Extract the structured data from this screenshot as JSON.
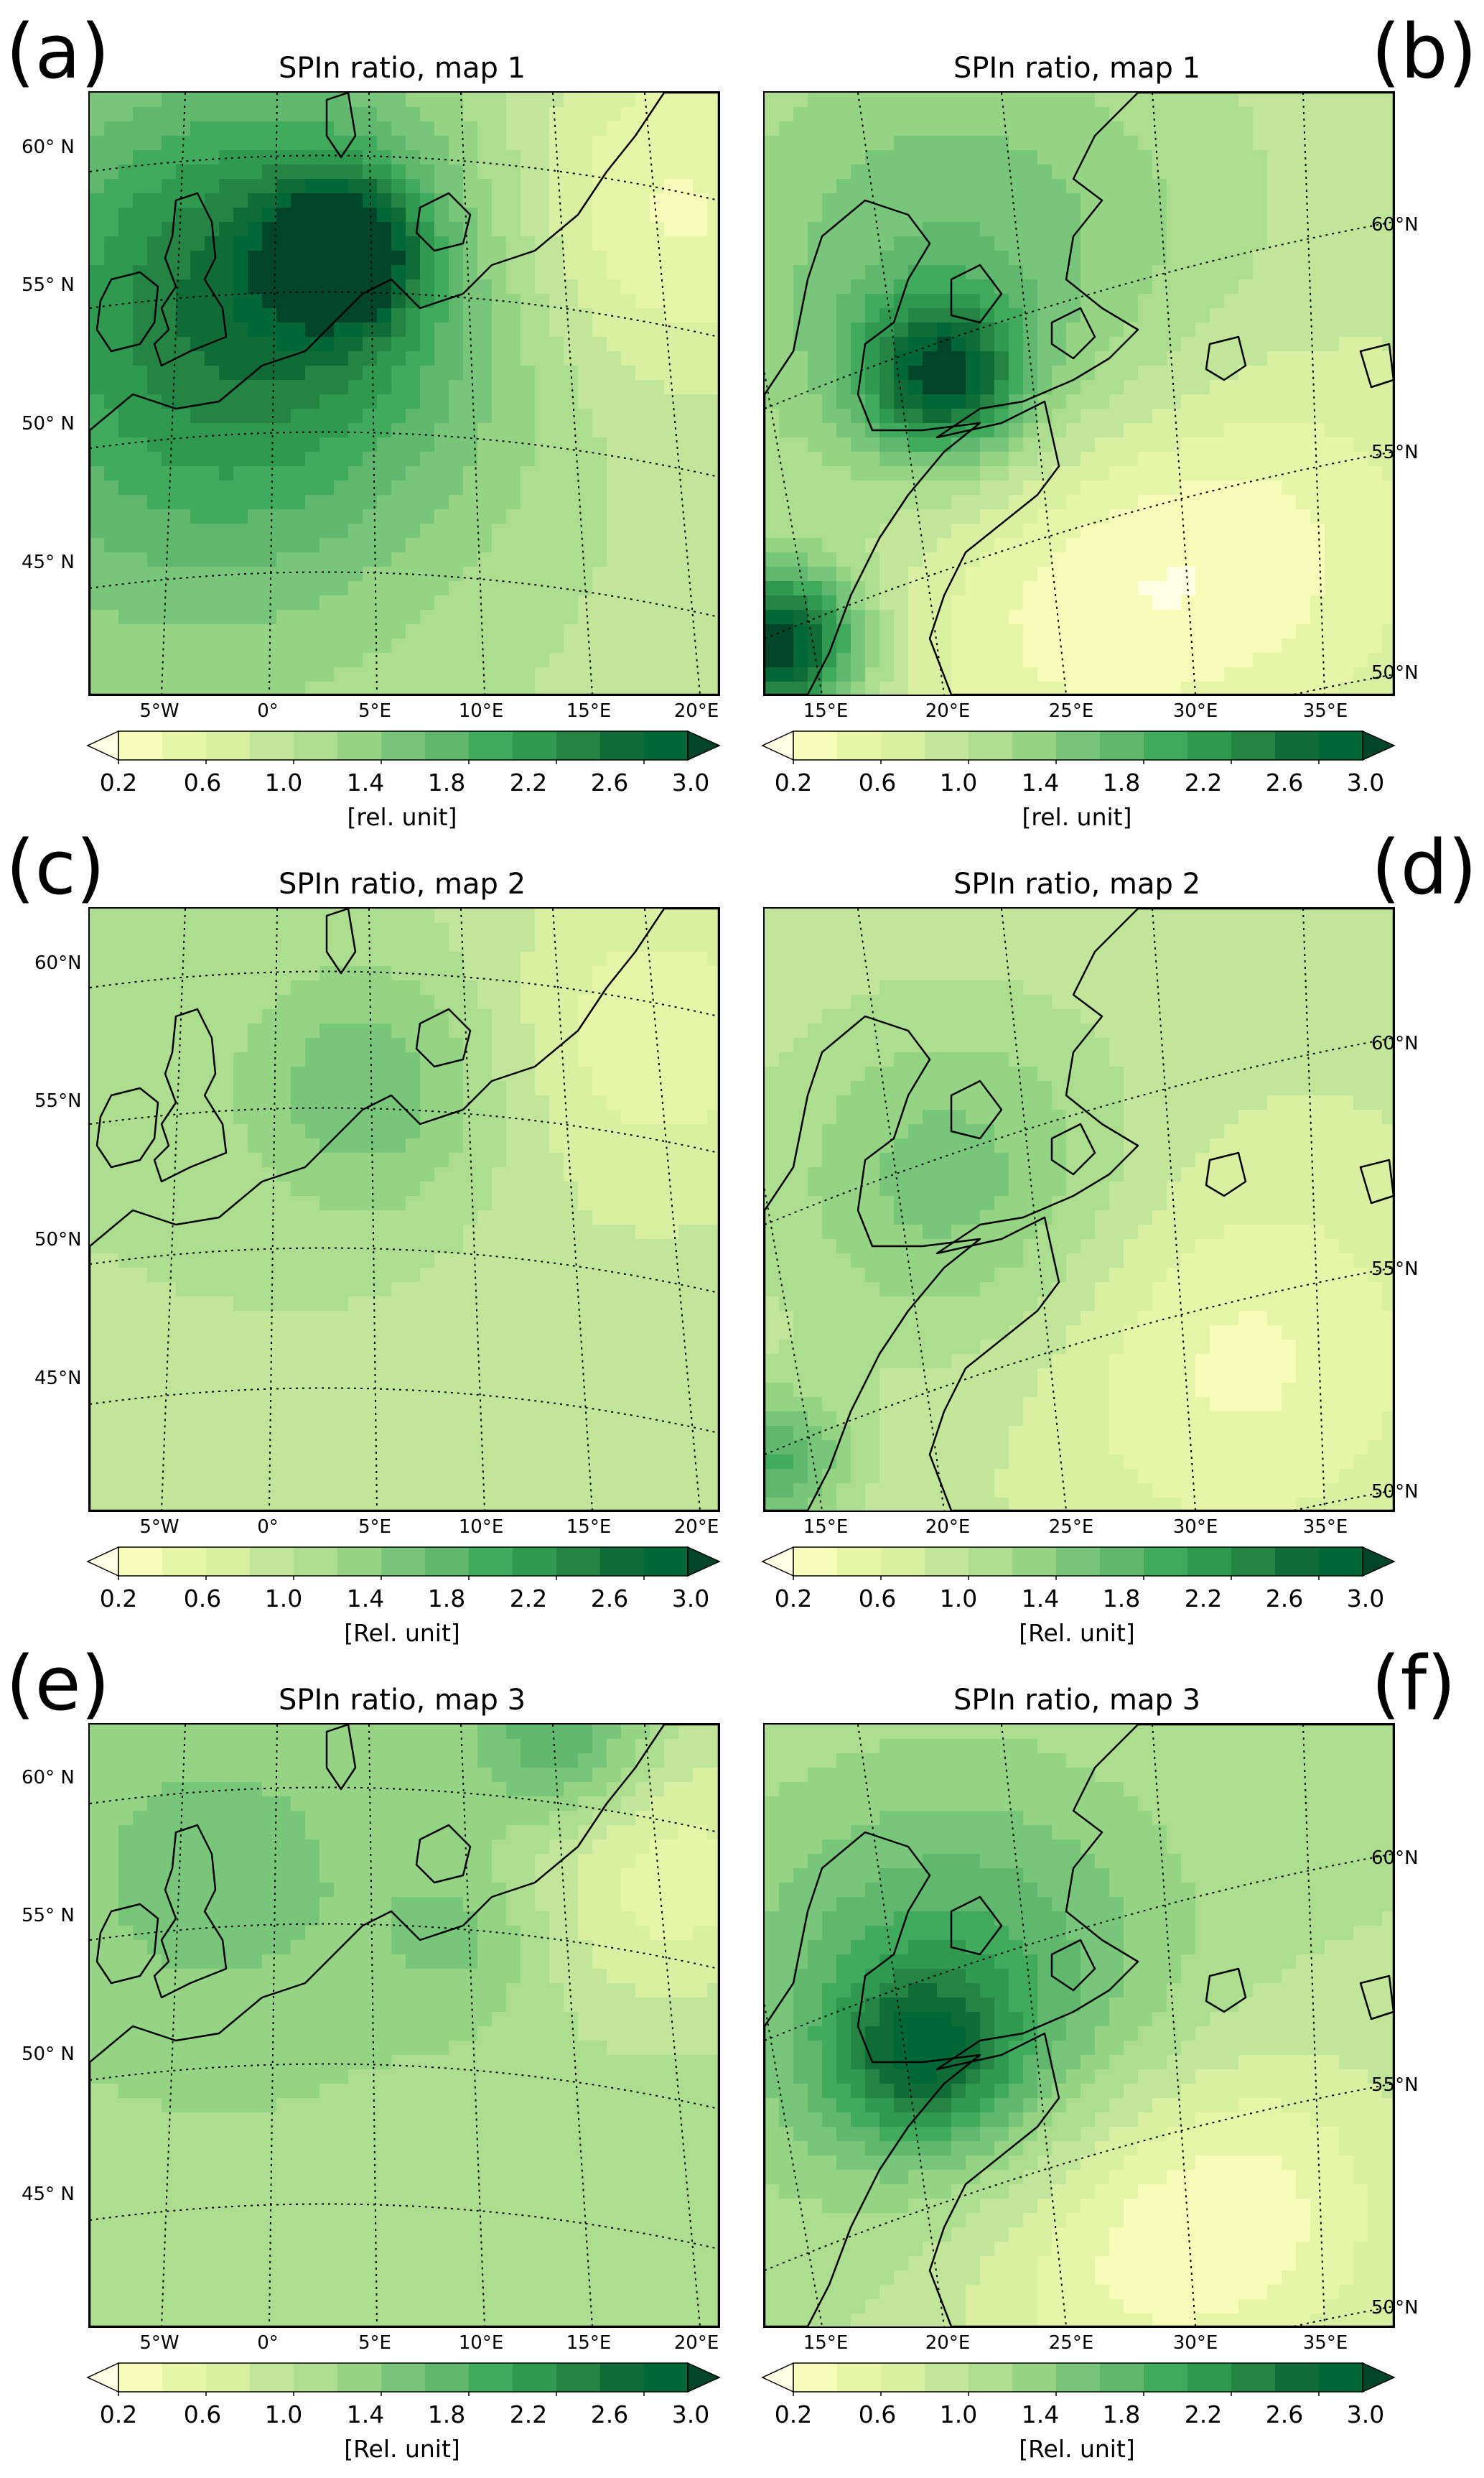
{
  "colorscale": [
    "#ffffe5",
    "#f7fcb9",
    "#e6f5a8",
    "#d9f0a3",
    "#c2e699",
    "#addd8e",
    "#94d484",
    "#78c679",
    "#5fb86d",
    "#41ab5d",
    "#2f9950",
    "#238443",
    "#106c36",
    "#006837",
    "#004529"
  ],
  "panels": [
    {
      "letter": "(a)",
      "title": "SPIn ratio, map 1",
      "region": "west",
      "lat_labels": [
        "60° N",
        "55° N",
        "50° N",
        "45° N"
      ],
      "lon_labels": [
        "5°W",
        "0°",
        "5°E",
        "10°E",
        "15°E",
        "20°E"
      ],
      "cbar": {
        "ticks": [
          "0.2",
          "0.6",
          "1.0",
          "1.4",
          "1.8",
          "2.2",
          "2.6",
          "3.0"
        ],
        "label": "[rel. unit]"
      },
      "field": {
        "base": 0.95,
        "hotspots": [
          {
            "u": 0.4,
            "v": 0.27,
            "value": 2.6,
            "sigma": 0.08
          },
          {
            "u": 0.3,
            "v": 0.3,
            "value": 1.9,
            "sigma": 0.25
          },
          {
            "u": 0.15,
            "v": 0.5,
            "value": 1.7,
            "sigma": 0.35
          },
          {
            "u": 0.9,
            "v": 0.2,
            "value": 0.3,
            "sigma": 0.2
          },
          {
            "u": 0.8,
            "v": 0.8,
            "value": 0.9,
            "sigma": 0.3
          }
        ]
      }
    },
    {
      "letter": "(b)",
      "title": "SPIn ratio, map 1",
      "region": "east",
      "lat_labels": [
        "60°N",
        "55°N",
        "50°N"
      ],
      "lon_labels": [
        "15°E",
        "20°E",
        "25°E",
        "30°E",
        "35°E"
      ],
      "cbar": {
        "ticks": [
          "0.2",
          "0.6",
          "1.0",
          "1.4",
          "1.8",
          "2.2",
          "2.6",
          "3.0"
        ],
        "label": "[rel. unit]"
      },
      "field": {
        "base": 0.85,
        "hotspots": [
          {
            "u": 0.28,
            "v": 0.47,
            "value": 2.4,
            "sigma": 0.09
          },
          {
            "u": 0.02,
            "v": 0.92,
            "value": 2.9,
            "sigma": 0.09
          },
          {
            "u": 0.3,
            "v": 0.3,
            "value": 1.6,
            "sigma": 0.3
          },
          {
            "u": 0.75,
            "v": 0.75,
            "value": 0.3,
            "sigma": 0.22
          },
          {
            "u": 0.45,
            "v": 0.85,
            "value": 0.4,
            "sigma": 0.2
          }
        ]
      }
    },
    {
      "letter": "(c)",
      "title": "SPIn ratio, map 2",
      "region": "west",
      "lat_labels": [
        "60°N",
        "55°N",
        "50°N",
        "45°N"
      ],
      "lon_labels": [
        "5°W",
        "0°",
        "5°E",
        "10°E",
        "15°E",
        "20°E"
      ],
      "cbar": {
        "ticks": [
          "0.2",
          "0.6",
          "1.0",
          "1.4",
          "1.8",
          "2.2",
          "2.6",
          "3.0"
        ],
        "label": "[Rel. unit]"
      },
      "field": {
        "base": 1.0,
        "hotspots": [
          {
            "u": 0.45,
            "v": 0.3,
            "value": 1.6,
            "sigma": 0.15
          },
          {
            "u": 0.9,
            "v": 0.2,
            "value": 0.5,
            "sigma": 0.2
          },
          {
            "u": 0.85,
            "v": 0.7,
            "value": 0.9,
            "sigma": 0.3
          }
        ]
      }
    },
    {
      "letter": "(d)",
      "title": "SPIn ratio, map 2",
      "region": "east",
      "lat_labels": [
        "60°N",
        "55°N",
        "50°N"
      ],
      "lon_labels": [
        "15°E",
        "20°E",
        "25°E",
        "30°E",
        "35°E"
      ],
      "cbar": {
        "ticks": [
          "0.2",
          "0.6",
          "1.0",
          "1.4",
          "1.8",
          "2.2",
          "2.6",
          "3.0"
        ],
        "label": "[Rel. unit]"
      },
      "field": {
        "base": 0.85,
        "hotspots": [
          {
            "u": 0.3,
            "v": 0.45,
            "value": 1.5,
            "sigma": 0.2
          },
          {
            "u": 0.02,
            "v": 0.92,
            "value": 1.8,
            "sigma": 0.08
          },
          {
            "u": 0.75,
            "v": 0.75,
            "value": 0.35,
            "sigma": 0.22
          }
        ]
      }
    },
    {
      "letter": "(e)",
      "title": "SPIn ratio, map 3",
      "region": "west",
      "lat_labels": [
        "60° N",
        "55° N",
        "50° N",
        "45° N"
      ],
      "lon_labels": [
        "5°W",
        "0°",
        "5°E",
        "10°E",
        "15°E",
        "20°E"
      ],
      "cbar": {
        "ticks": [
          "0.2",
          "0.6",
          "1.0",
          "1.4",
          "1.8",
          "2.2",
          "2.6",
          "3.0"
        ],
        "label": "[Rel. unit]"
      },
      "field": {
        "base": 1.15,
        "hotspots": [
          {
            "u": 0.75,
            "v": 0.03,
            "value": 1.9,
            "sigma": 0.1
          },
          {
            "u": 0.92,
            "v": 0.25,
            "value": 0.5,
            "sigma": 0.18
          },
          {
            "u": 0.2,
            "v": 0.25,
            "value": 1.5,
            "sigma": 0.2
          },
          {
            "u": 0.6,
            "v": 0.35,
            "value": 1.5,
            "sigma": 0.1
          }
        ]
      }
    },
    {
      "letter": "(f)",
      "title": "SPIn ratio, map 3",
      "region": "east",
      "lat_labels": [
        "60°N",
        "55°N",
        "50°N"
      ],
      "lon_labels": [
        "15°E",
        "20°E",
        "25°E",
        "30°E",
        "35°E"
      ],
      "cbar": {
        "ticks": [
          "0.2",
          "0.6",
          "1.0",
          "1.4",
          "1.8",
          "2.2",
          "2.6",
          "3.0"
        ],
        "label": "[Rel. unit]"
      },
      "field": {
        "base": 1.0,
        "hotspots": [
          {
            "u": 0.3,
            "v": 0.45,
            "value": 1.9,
            "sigma": 0.25
          },
          {
            "u": 0.25,
            "v": 0.55,
            "value": 2.0,
            "sigma": 0.1
          },
          {
            "u": 0.75,
            "v": 0.8,
            "value": 0.35,
            "sigma": 0.2
          },
          {
            "u": 0.5,
            "v": 0.9,
            "value": 0.6,
            "sigma": 0.2
          }
        ]
      }
    }
  ]
}
